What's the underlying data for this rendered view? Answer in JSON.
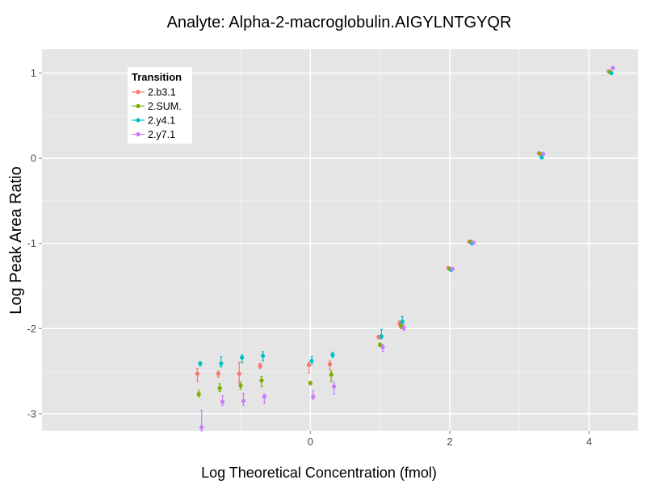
{
  "chart_data": {
    "type": "scatter",
    "title": "Analyte: Alpha-2-macroglobulin.AIGYLNTGYQR",
    "xlabel": "Log Theoretical Concentration (fmol)",
    "ylabel": "Log Peak Area Ratio",
    "xlim": [
      -3.85,
      4.7
    ],
    "ylim": [
      -3.2,
      1.28
    ],
    "x_ticks": [
      0,
      2,
      4
    ],
    "x_tick_labels": [
      "0",
      "2",
      "4"
    ],
    "y_ticks": [
      -3,
      -2,
      -1,
      0,
      1
    ],
    "y_tick_labels": [
      "-3",
      "-2",
      "-1",
      "0",
      "1"
    ],
    "grid": true,
    "legend": {
      "title": "Transition",
      "position": "top-left"
    },
    "series": [
      {
        "name": "2.b3.1",
        "color": "#F8766D",
        "points": [
          {
            "x": -1.62,
            "y": -2.53,
            "lo": -2.62,
            "hi": -2.47
          },
          {
            "x": -1.32,
            "y": -2.53,
            "lo": -2.57,
            "hi": -2.5
          },
          {
            "x": -1.02,
            "y": -2.53,
            "lo": -2.64,
            "hi": -2.4
          },
          {
            "x": -0.72,
            "y": -2.44,
            "lo": -2.47,
            "hi": -2.41
          },
          {
            "x": -0.02,
            "y": -2.43,
            "lo": -2.52,
            "hi": -2.4
          },
          {
            "x": 0.28,
            "y": -2.42,
            "lo": -2.48,
            "hi": -2.38
          },
          {
            "x": 0.98,
            "y": -2.1,
            "lo": -2.12,
            "hi": -2.08
          },
          {
            "x": 1.28,
            "y": -1.94,
            "lo": -1.98,
            "hi": -1.91
          },
          {
            "x": 1.98,
            "y": -1.29,
            "lo": -1.3,
            "hi": -1.28
          },
          {
            "x": 2.28,
            "y": -0.98,
            "lo": -0.99,
            "hi": -0.97
          },
          {
            "x": 3.28,
            "y": 0.06,
            "lo": 0.05,
            "hi": 0.07
          },
          {
            "x": 4.28,
            "y": 1.02,
            "lo": 1.01,
            "hi": 1.03
          }
        ]
      },
      {
        "name": "2.SUM.",
        "color": "#7CAE00",
        "points": [
          {
            "x": -1.6,
            "y": -2.77,
            "lo": -2.8,
            "hi": -2.73
          },
          {
            "x": -1.3,
            "y": -2.7,
            "lo": -2.74,
            "hi": -2.65
          },
          {
            "x": -1.0,
            "y": -2.67,
            "lo": -2.71,
            "hi": -2.63
          },
          {
            "x": -0.7,
            "y": -2.61,
            "lo": -2.68,
            "hi": -2.56
          },
          {
            "x": 0.0,
            "y": -2.64,
            "lo": -2.66,
            "hi": -2.62
          },
          {
            "x": 0.3,
            "y": -2.54,
            "lo": -2.62,
            "hi": -2.5
          },
          {
            "x": 1.0,
            "y": -2.19,
            "lo": -2.21,
            "hi": -2.17
          },
          {
            "x": 1.3,
            "y": -1.97,
            "lo": -2.0,
            "hi": -1.94
          },
          {
            "x": 2.0,
            "y": -1.3,
            "lo": -1.31,
            "hi": -1.29
          },
          {
            "x": 2.3,
            "y": -0.98,
            "lo": -0.99,
            "hi": -0.97
          },
          {
            "x": 3.3,
            "y": 0.05,
            "lo": 0.04,
            "hi": 0.06
          },
          {
            "x": 4.3,
            "y": 1.01,
            "lo": 1.0,
            "hi": 1.02
          }
        ]
      },
      {
        "name": "2.y4.1",
        "color": "#00BFC4",
        "points": [
          {
            "x": -1.58,
            "y": -2.41,
            "lo": -2.44,
            "hi": -2.39
          },
          {
            "x": -1.28,
            "y": -2.41,
            "lo": -2.45,
            "hi": -2.33
          },
          {
            "x": -0.98,
            "y": -2.34,
            "lo": -2.4,
            "hi": -2.31
          },
          {
            "x": -0.68,
            "y": -2.32,
            "lo": -2.38,
            "hi": -2.27
          },
          {
            "x": 0.02,
            "y": -2.38,
            "lo": -2.42,
            "hi": -2.33
          },
          {
            "x": 0.32,
            "y": -2.31,
            "lo": -2.34,
            "hi": -2.28
          },
          {
            "x": 1.02,
            "y": -2.09,
            "lo": -2.12,
            "hi": -2.01
          },
          {
            "x": 1.32,
            "y": -1.92,
            "lo": -1.96,
            "hi": -1.86
          },
          {
            "x": 2.02,
            "y": -1.31,
            "lo": -1.32,
            "hi": -1.3
          },
          {
            "x": 2.32,
            "y": -1.0,
            "lo": -1.01,
            "hi": -0.99
          },
          {
            "x": 3.32,
            "y": 0.01,
            "lo": 0.0,
            "hi": 0.02
          },
          {
            "x": 4.32,
            "y": 1.0,
            "lo": 0.99,
            "hi": 1.01
          }
        ]
      },
      {
        "name": "2.y7.1",
        "color": "#C77CFF",
        "points": [
          {
            "x": -1.56,
            "y": -3.16,
            "lo": -3.2,
            "hi": -2.96
          },
          {
            "x": -1.26,
            "y": -2.86,
            "lo": -2.9,
            "hi": -2.79
          },
          {
            "x": -0.96,
            "y": -2.85,
            "lo": -2.9,
            "hi": -2.76
          },
          {
            "x": -0.66,
            "y": -2.8,
            "lo": -2.88,
            "hi": -2.77
          },
          {
            "x": 0.04,
            "y": -2.8,
            "lo": -2.83,
            "hi": -2.73
          },
          {
            "x": 0.34,
            "y": -2.68,
            "lo": -2.77,
            "hi": -2.63
          },
          {
            "x": 1.04,
            "y": -2.22,
            "lo": -2.27,
            "hi": -2.19
          },
          {
            "x": 1.34,
            "y": -1.99,
            "lo": -2.02,
            "hi": -1.96
          },
          {
            "x": 2.04,
            "y": -1.3,
            "lo": -1.31,
            "hi": -1.29
          },
          {
            "x": 2.34,
            "y": -0.99,
            "lo": -1.0,
            "hi": -0.98
          },
          {
            "x": 3.34,
            "y": 0.05,
            "lo": 0.04,
            "hi": 0.06
          },
          {
            "x": 4.34,
            "y": 1.06,
            "lo": 1.05,
            "hi": 1.07
          }
        ]
      }
    ]
  }
}
